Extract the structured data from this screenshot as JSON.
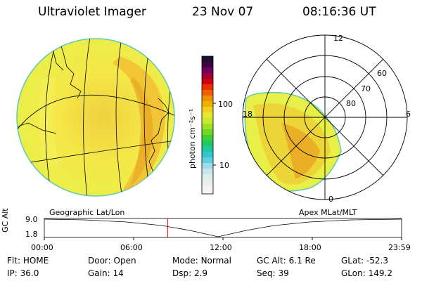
{
  "header": {
    "title": "Ultraviolet Imager",
    "date": "23 Nov 07",
    "time": "08:16:36 UT"
  },
  "colorbar": {
    "label": "photon cm⁻²s⁻¹",
    "tick_high": "100",
    "tick_low": "10"
  },
  "maps": {
    "left_label": "Geographic Lat/Lon",
    "right_label": "Apex MLat/MLT",
    "polar_labels": {
      "mlt12": "12",
      "mlt18": "18",
      "mlt6": "6",
      "mlt0": "0",
      "lat60": "60",
      "lat70": "70",
      "lat80": "80"
    }
  },
  "timeline": {
    "ylabel": "GC Alt",
    "y_top": "9.0",
    "y_bottom": "1.8",
    "ticks": [
      "00:00",
      "06:00",
      "12:00",
      "18:00",
      "23:59"
    ],
    "current_time": "08:16:36"
  },
  "status": {
    "row1": [
      {
        "label": "Flt:",
        "value": "HOME"
      },
      {
        "label": "Door:",
        "value": "Open"
      },
      {
        "label": "Mode:",
        "value": "Normal"
      },
      {
        "label": "GC Alt:",
        "value": "6.1 Re"
      },
      {
        "label": "GLat:",
        "value": "-52.3"
      }
    ],
    "row2": [
      {
        "label": "IP:",
        "value": "36.0"
      },
      {
        "label": "Gain:",
        "value": "14"
      },
      {
        "label": "Dsp:",
        "value": "2.9"
      },
      {
        "label": "Seq:",
        "value": "39"
      },
      {
        "label": "GLon:",
        "value": "149.2"
      }
    ]
  },
  "colors": {
    "image_low": "#f2ef40",
    "image_mid": "#f0c830",
    "image_high": "#e8a020",
    "marker": "#e00000",
    "limb": "#40c0c0"
  }
}
